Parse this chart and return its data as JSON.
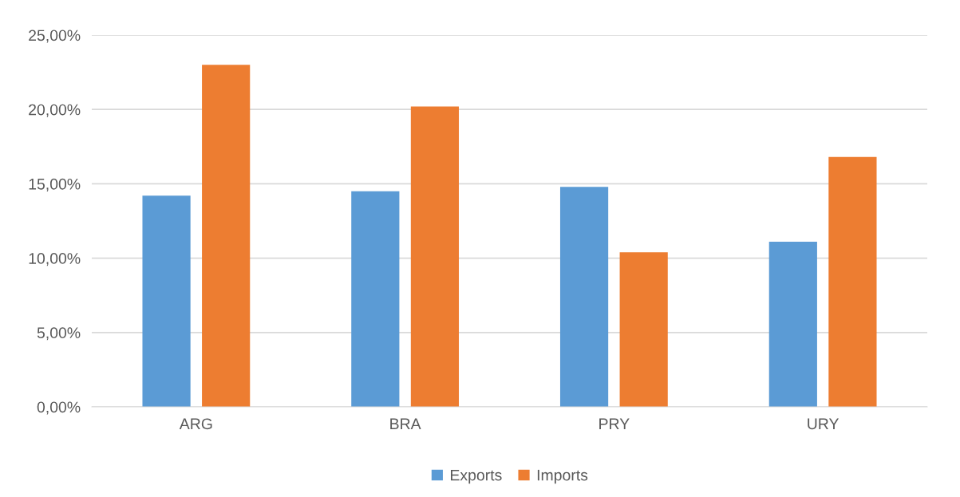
{
  "chart_data": {
    "type": "bar",
    "categories": [
      "ARG",
      "BRA",
      "PRY",
      "URY"
    ],
    "series": [
      {
        "name": "Exports",
        "color": "#5b9bd5",
        "values": [
          14.2,
          14.5,
          14.8,
          11.1
        ]
      },
      {
        "name": "Imports",
        "color": "#ed7d31",
        "values": [
          23.0,
          20.2,
          10.4,
          16.8
        ]
      }
    ],
    "ylim": [
      0,
      25
    ],
    "yticks": [
      {
        "value": 0,
        "label": "0,00%"
      },
      {
        "value": 5,
        "label": "5,00%"
      },
      {
        "value": 10,
        "label": "10,00%"
      },
      {
        "value": 15,
        "label": "15,00%"
      },
      {
        "value": 20,
        "label": "20,00%"
      },
      {
        "value": 25,
        "label": "25,00%"
      }
    ],
    "grid": "y",
    "legend": "bottom"
  }
}
